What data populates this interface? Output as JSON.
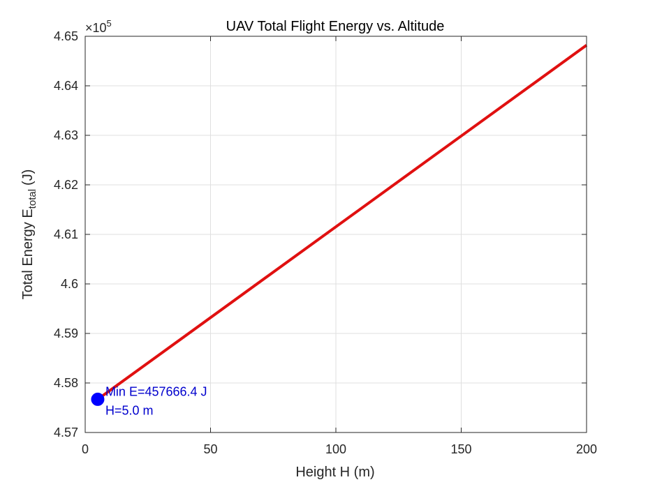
{
  "chart_data": {
    "type": "line",
    "title": "UAV Total Flight Energy vs. Altitude",
    "xlabel": "Height H (m)",
    "ylabel_main": "Total Energy E",
    "ylabel_sub": "total",
    "ylabel_unit": "(J)",
    "exponent_base": "×10",
    "exponent_power": "5",
    "xlim": [
      0,
      200
    ],
    "ylim": [
      4.57,
      4.65
    ],
    "x_ticks": [
      0,
      50,
      100,
      150,
      200
    ],
    "x_tick_labels": [
      "0",
      "50",
      "100",
      "150",
      "200"
    ],
    "y_ticks": [
      4.57,
      4.58,
      4.59,
      4.6,
      4.61,
      4.62,
      4.63,
      4.64,
      4.65
    ],
    "y_tick_labels": [
      "4.57",
      "4.58",
      "4.59",
      "4.6",
      "4.61",
      "4.62",
      "4.63",
      "4.64",
      "4.65"
    ],
    "grid": true,
    "series": [
      {
        "name": "E_total",
        "color": "#e01010",
        "x": [
          5,
          200
        ],
        "y": [
          4.5767,
          4.6482
        ]
      }
    ],
    "min_marker": {
      "x": 5,
      "y": 4.5767,
      "color": "#0000ff",
      "label_line1": "Min E=457666.4 J",
      "label_line2": "H=5.0 m"
    }
  }
}
